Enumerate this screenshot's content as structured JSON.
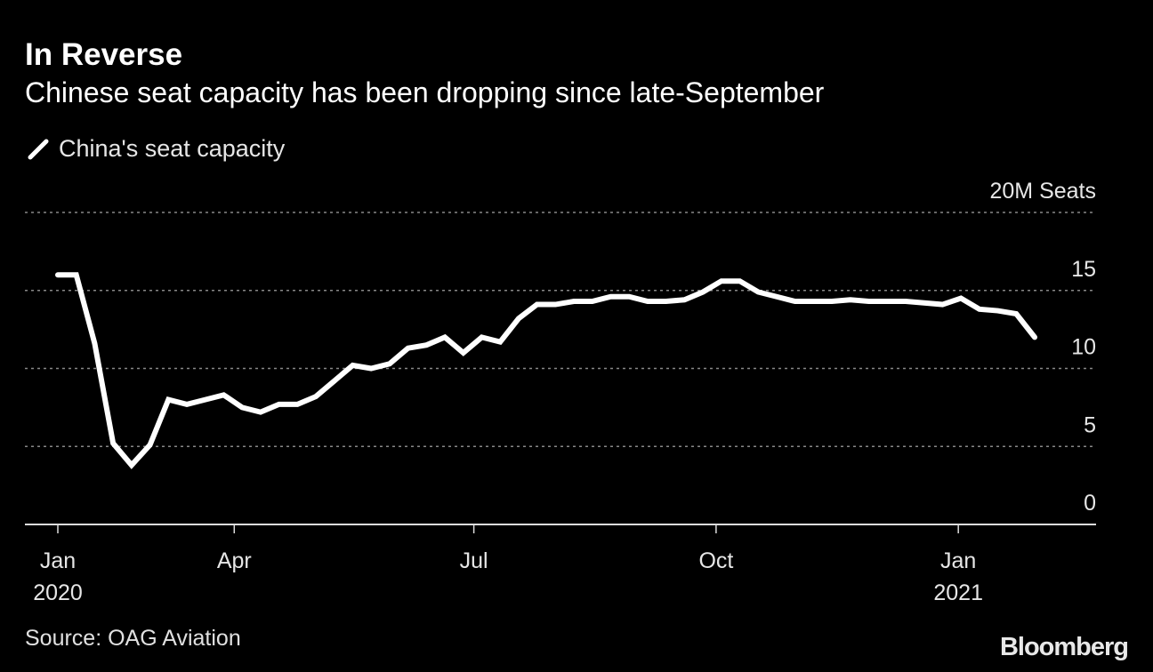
{
  "title": "In Reverse",
  "subtitle": "Chinese seat capacity has been dropping since late-September",
  "source": "Source: OAG Aviation",
  "logo": "Bloomberg",
  "colors": {
    "background": "#000000",
    "line": "#ffffff",
    "grid": "#888888"
  },
  "chart_data": {
    "type": "line",
    "title": "In Reverse",
    "subtitle": "Chinese seat capacity has been dropping since late-September",
    "ylabel_unit": "20M Seats",
    "ylim": [
      0,
      20
    ],
    "yticks": [
      0,
      5,
      10,
      15,
      20
    ],
    "ytick_labels": [
      "0",
      "5",
      "10",
      "15",
      "20M Seats"
    ],
    "y_axis_position": "right",
    "grid": "horizontal dotted",
    "legend_placement": "top-left",
    "xticks": [
      {
        "date": "2020-01-01",
        "label": "Jan",
        "year": "2020"
      },
      {
        "date": "2020-04-01",
        "label": "Apr",
        "year": ""
      },
      {
        "date": "2020-07-01",
        "label": "Jul",
        "year": ""
      },
      {
        "date": "2020-10-01",
        "label": "Oct",
        "year": ""
      },
      {
        "date": "2021-01-01",
        "label": "Jan",
        "year": "2021"
      }
    ],
    "series": [
      {
        "name": "China's seat capacity",
        "start_date": "2020-01-25",
        "frequency": "weekly",
        "values": [
          16.0,
          16.0,
          11.6,
          5.2,
          3.8,
          5.1,
          8.0,
          7.7,
          8.0,
          8.3,
          7.5,
          7.2,
          7.7,
          7.7,
          8.2,
          9.2,
          10.2,
          10.0,
          10.3,
          11.3,
          11.5,
          12.0,
          11.0,
          12.0,
          11.7,
          13.2,
          14.1,
          14.1,
          14.3,
          14.3,
          14.6,
          14.6,
          14.3,
          14.3,
          14.4,
          14.9,
          15.6,
          15.6,
          14.9,
          14.6,
          14.3,
          14.3,
          14.3,
          14.4,
          14.3,
          14.3,
          14.3,
          14.2,
          14.1,
          14.5,
          13.8,
          13.7,
          13.5,
          12.0
        ]
      }
    ]
  }
}
